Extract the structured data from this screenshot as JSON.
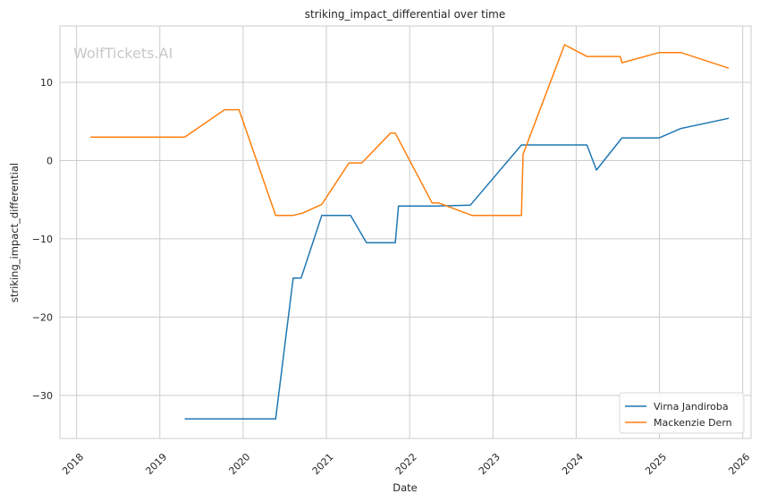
{
  "chart_data": {
    "type": "line",
    "title": "striking_impact_differential over time",
    "xlabel": "Date",
    "ylabel": "striking_impact_differential",
    "watermark": "WolfTickets.AI",
    "xlim": [
      2017.8,
      2026.1
    ],
    "ylim": [
      -35.5,
      17.2
    ],
    "x_ticks": [
      2018,
      2019,
      2020,
      2021,
      2022,
      2023,
      2024,
      2025,
      2026
    ],
    "x_tick_labels": [
      "2018",
      "2019",
      "2020",
      "2021",
      "2022",
      "2023",
      "2024",
      "2025",
      "2026"
    ],
    "y_ticks": [
      -30,
      -20,
      -10,
      0,
      10
    ],
    "y_tick_labels": [
      "−30",
      "−20",
      "−10",
      "0",
      "10"
    ],
    "grid": true,
    "legend_position": "bottom-right",
    "series": [
      {
        "name": "Virna Jandiroba",
        "color": "#1f77b4",
        "points": [
          [
            "2019-04-20",
            -33.0
          ],
          [
            "2020-05-23",
            -33.0
          ],
          [
            "2020-08-08",
            -15.0
          ],
          [
            "2020-09-12",
            -15.0
          ],
          [
            "2020-12-12",
            -7.0
          ],
          [
            "2021-04-17",
            -7.0
          ],
          [
            "2021-06-26",
            -10.5
          ],
          [
            "2021-10-30",
            -10.5
          ],
          [
            "2021-11-13",
            -5.8
          ],
          [
            "2022-04-23",
            -5.8
          ],
          [
            "2022-09-24",
            -5.7
          ],
          [
            "2023-05-06",
            2.0
          ],
          [
            "2024-02-17",
            2.0
          ],
          [
            "2024-03-30",
            -1.2
          ],
          [
            "2024-07-20",
            2.9
          ],
          [
            "2024-12-31",
            2.9
          ],
          [
            "2025-04-05",
            4.1
          ],
          [
            "2025-11-01",
            5.4
          ]
        ]
      },
      {
        "name": "Mackenzie Dern",
        "color": "#ff7f0e",
        "points": [
          [
            "2018-03-03",
            3.0
          ],
          [
            "2019-04-20",
            3.0
          ],
          [
            "2019-10-12",
            6.5
          ],
          [
            "2019-12-14",
            6.5
          ],
          [
            "2020-05-23",
            -7.0
          ],
          [
            "2020-08-08",
            -7.0
          ],
          [
            "2020-09-19",
            -6.7
          ],
          [
            "2020-12-12",
            -5.6
          ],
          [
            "2021-04-10",
            -0.3
          ],
          [
            "2021-06-05",
            -0.3
          ],
          [
            "2021-10-09",
            3.5
          ],
          [
            "2021-10-30",
            3.5
          ],
          [
            "2022-04-09",
            -5.4
          ],
          [
            "2022-05-07",
            -5.4
          ],
          [
            "2022-10-01",
            -7.0
          ],
          [
            "2023-05-06",
            -7.0
          ],
          [
            "2023-05-13",
            0.8
          ],
          [
            "2023-11-11",
            14.8
          ],
          [
            "2024-02-17",
            13.3
          ],
          [
            "2024-07-13",
            13.3
          ],
          [
            "2024-07-20",
            12.5
          ],
          [
            "2024-12-31",
            13.8
          ],
          [
            "2025-04-05",
            13.8
          ],
          [
            "2025-11-01",
            11.8
          ]
        ]
      }
    ]
  }
}
